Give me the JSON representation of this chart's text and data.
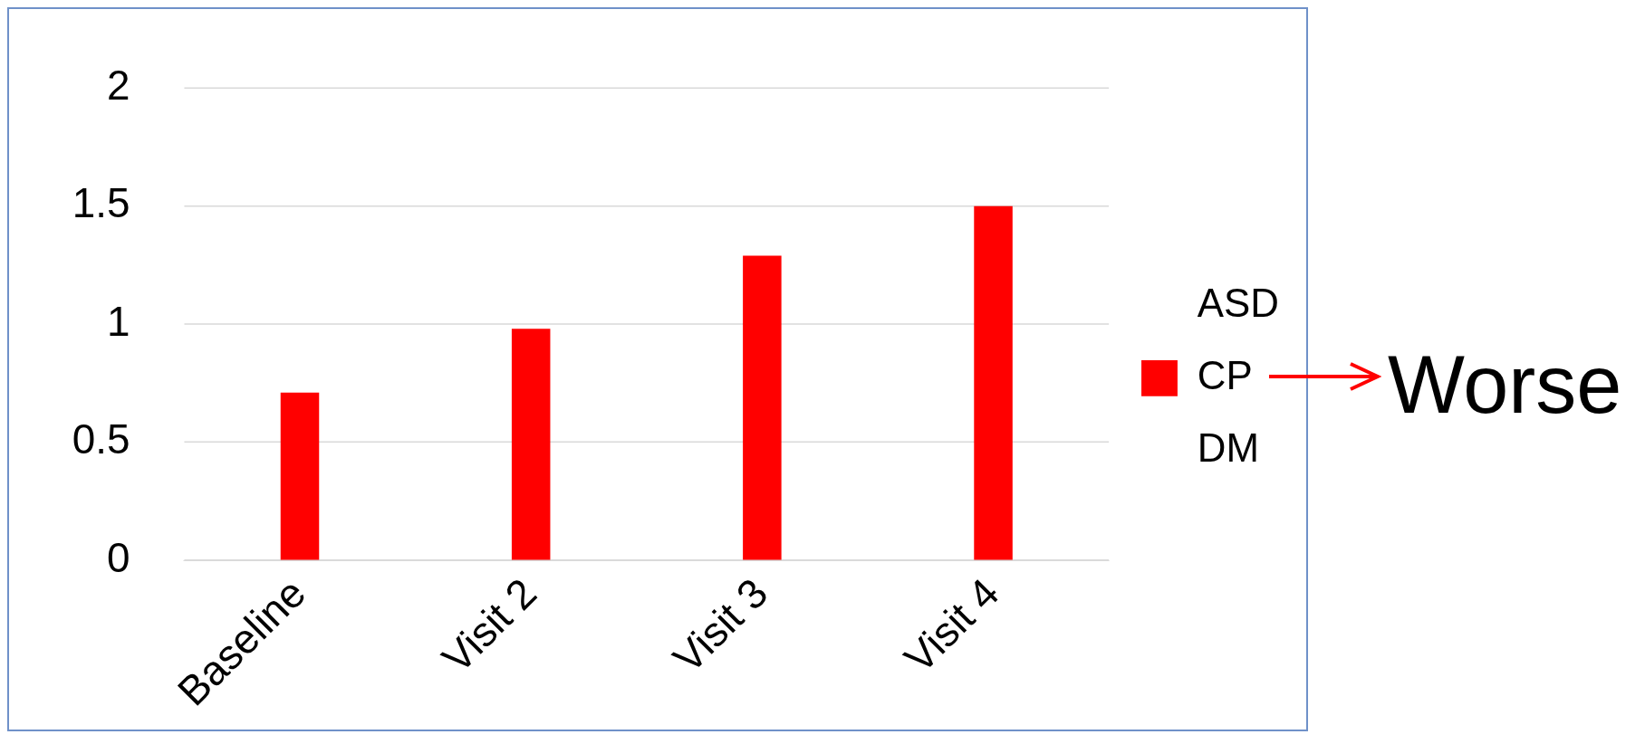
{
  "chart_data": {
    "type": "bar",
    "categories": [
      "Baseline",
      "Visit 2",
      "Visit 3",
      "Visit 4"
    ],
    "series": [
      {
        "name": "ASD",
        "values": [
          null,
          null,
          null,
          null
        ]
      },
      {
        "name": "CP",
        "color": "#ff0000",
        "values": [
          0.71,
          0.98,
          1.29,
          1.5
        ]
      },
      {
        "name": "DM",
        "values": [
          null,
          null,
          null,
          null
        ]
      }
    ],
    "ylim": [
      0,
      2
    ],
    "yticks": [
      0,
      0.5,
      1,
      1.5,
      2
    ],
    "grid": "y",
    "legend": "right",
    "annotations": [
      "Worse"
    ]
  }
}
